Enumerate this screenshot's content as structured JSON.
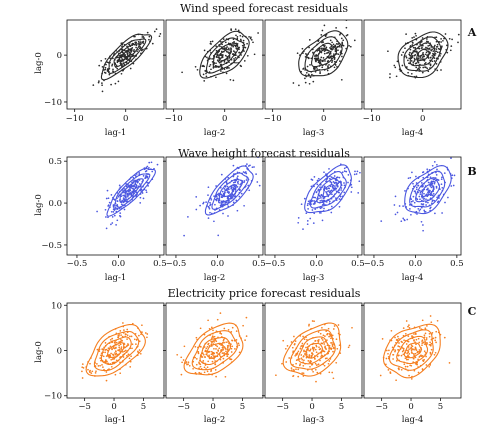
{
  "chart_data": [
    {
      "type": "scatter",
      "title": "Wind speed forecast residuals",
      "panel_label": "A",
      "color": "#2a2a2a",
      "ylabel": "lag-0",
      "x_ticks": [
        "−10",
        "0"
      ],
      "y_ticks": [
        "0",
        "−10"
      ],
      "xlim": [
        -11.5,
        7.5
      ],
      "ylim": [
        -11.5,
        7.5
      ],
      "subplots": [
        {
          "xlabel": "lag-1",
          "lag": 1,
          "correlation": 0.8
        },
        {
          "xlabel": "lag-2",
          "lag": 2,
          "correlation": 0.6
        },
        {
          "xlabel": "lag-3",
          "lag": 3,
          "correlation": 0.45
        },
        {
          "xlabel": "lag-4",
          "lag": 4,
          "correlation": 0.35
        }
      ],
      "point_distribution": {
        "x_mean": 0.0,
        "x_sd": 2.4,
        "y_mean": 0.0,
        "y_sd": 2.4
      },
      "contour_levels": [
        0.5,
        1.0,
        1.5,
        2.0
      ]
    },
    {
      "type": "scatter",
      "title": "Wave height forecast residuals",
      "panel_label": "B",
      "color": "#4b57e0",
      "ylabel": "lag-0",
      "x_ticks": [
        "−0.5",
        "0.0",
        "0.5"
      ],
      "y_ticks": [
        "0.5",
        "0.0",
        "−0.5"
      ],
      "xlim": [
        -0.62,
        0.55
      ],
      "ylim": [
        -0.62,
        0.55
      ],
      "subplots": [
        {
          "xlabel": "lag-1",
          "lag": 1,
          "correlation": 0.85
        },
        {
          "xlabel": "lag-2",
          "lag": 2,
          "correlation": 0.72
        },
        {
          "xlabel": "lag-3",
          "lag": 3,
          "correlation": 0.6
        },
        {
          "xlabel": "lag-4",
          "lag": 4,
          "correlation": 0.5
        }
      ],
      "point_distribution": {
        "x_mean": 0.15,
        "x_sd": 0.14,
        "y_mean": 0.15,
        "y_sd": 0.14
      },
      "contour_levels": [
        0.5,
        1.0,
        1.5,
        2.0
      ]
    },
    {
      "type": "scatter",
      "title": "Electricity price forecast residuals",
      "panel_label": "C",
      "color": "#f57f20",
      "ylabel": "lag-0",
      "x_ticks": [
        "−5",
        "0",
        "5"
      ],
      "y_ticks": [
        "10",
        "0",
        "−10"
      ],
      "xlim": [
        -8,
        8.5
      ],
      "ylim": [
        -10.5,
        10.5
      ],
      "subplots": [
        {
          "xlabel": "lag-1",
          "lag": 1,
          "correlation": 0.55
        },
        {
          "xlabel": "lag-2",
          "lag": 2,
          "correlation": 0.45
        },
        {
          "xlabel": "lag-3",
          "lag": 3,
          "correlation": 0.38
        },
        {
          "xlabel": "lag-4",
          "lag": 4,
          "correlation": 0.32
        }
      ],
      "point_distribution": {
        "x_mean": 0.3,
        "x_sd": 2.3,
        "y_mean": 0.0,
        "y_sd": 2.7
      },
      "contour_levels": [
        0.6,
        1.1,
        1.6,
        2.1
      ]
    }
  ]
}
